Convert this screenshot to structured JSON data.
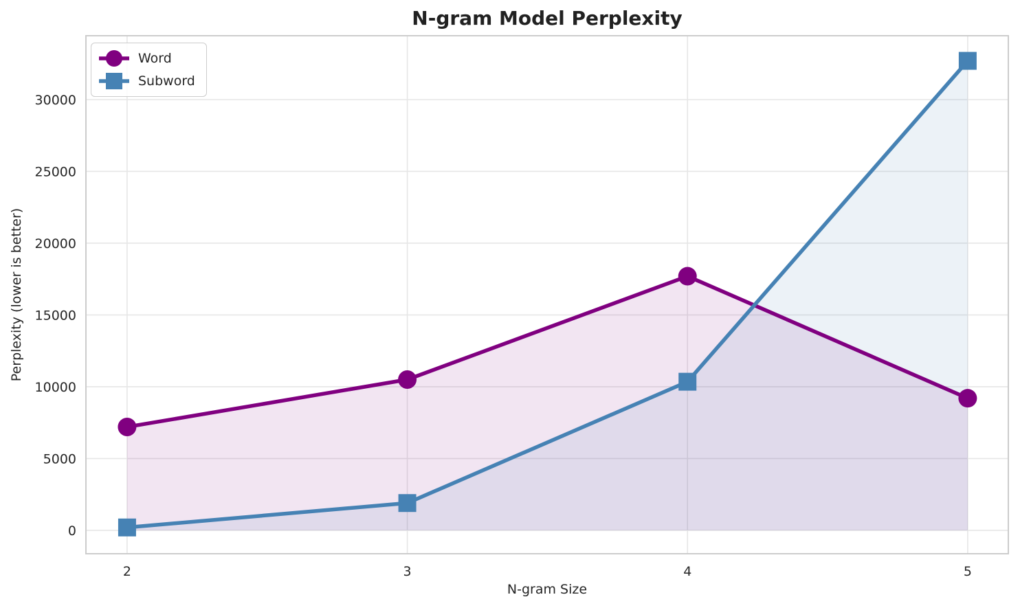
{
  "figure": {
    "background": "#ffffff"
  },
  "chart_data": {
    "type": "line",
    "title": "N-gram Model Perplexity",
    "xlabel": "N-gram Size",
    "ylabel": "Perplexity (lower is better)",
    "x": [
      2,
      3,
      4,
      5
    ],
    "xticks": [
      "2",
      "3",
      "4",
      "5"
    ],
    "yticks": [
      0,
      5000,
      10000,
      15000,
      20000,
      25000,
      30000
    ],
    "xlim": [
      1.853,
      5.145
    ],
    "ylim": [
      -1630,
      34450
    ],
    "grid": true,
    "grid_color": "#e6e6e6",
    "spine_color": "#cccccc",
    "text_color": "#262626",
    "legend": {
      "position": "upper left"
    },
    "series": [
      {
        "name": "Word",
        "color": "#800080",
        "marker": "circle",
        "values": [
          7200,
          10500,
          17700,
          9200
        ],
        "fill_alpha": 0.1,
        "fill_baseline": 0
      },
      {
        "name": "Subword",
        "color": "#4682b4",
        "marker": "square",
        "values": [
          200,
          1900,
          10350,
          32700
        ],
        "fill_alpha": 0.1,
        "fill_baseline": 0
      }
    ]
  }
}
